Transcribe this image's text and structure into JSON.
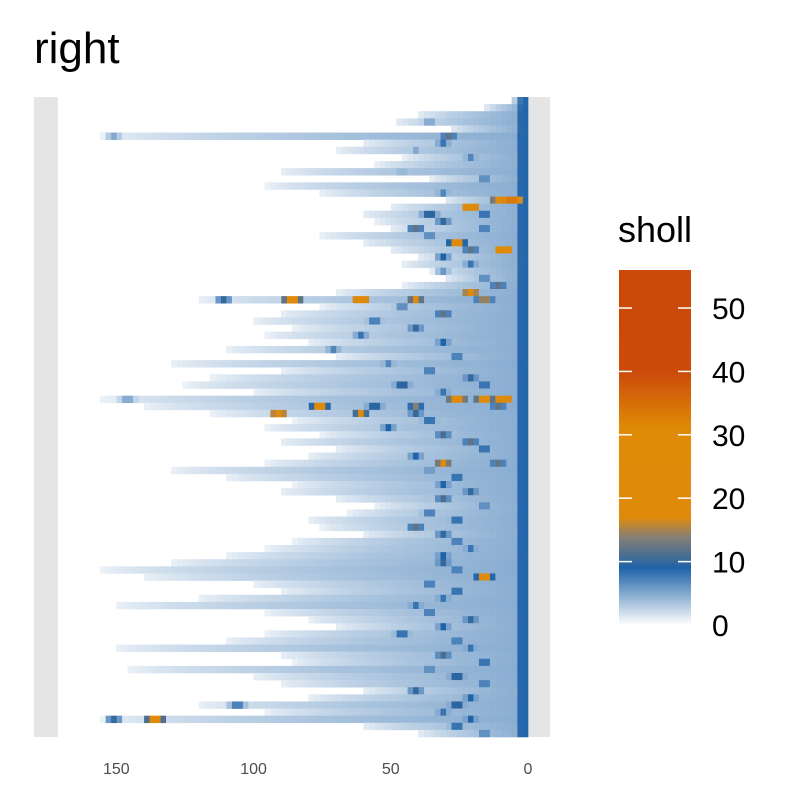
{
  "chart_data": {
    "type": "heatmap",
    "title": "right",
    "xlabel": "",
    "ylabel": "",
    "x_reversed": true,
    "xlim": [
      180,
      -8
    ],
    "x_ticks": [
      150,
      100,
      50,
      0
    ],
    "x_tick_labels": [
      "150",
      "100",
      "50",
      "0"
    ],
    "panel_background": "#e5e5e5",
    "legend": {
      "title": "sholl",
      "ticks": [
        0,
        10,
        20,
        30,
        40,
        50
      ],
      "tick_labels": [
        "0",
        "10",
        "20",
        "30",
        "40",
        "50"
      ],
      "range": [
        0,
        56
      ],
      "position": "right"
    },
    "color_stops": [
      {
        "value": 0,
        "color": "#ffffff"
      },
      {
        "value": 9,
        "color": "#1f63a8"
      },
      {
        "value": 14,
        "color": "#8a8071"
      },
      {
        "value": 17,
        "color": "#e08a0b"
      },
      {
        "value": 31,
        "color": "#df8b07"
      },
      {
        "value": 40,
        "color": "#cc4a0a"
      },
      {
        "value": 56,
        "color": "#cb4a08"
      }
    ],
    "rows_top_to_bottom": [
      {
        "max_radius": 6,
        "peaks": []
      },
      {
        "max_radius": 15,
        "peaks": []
      },
      {
        "max_radius": 40,
        "peaks": []
      },
      {
        "max_radius": 48,
        "peaks": [
          [
            35,
            6
          ]
        ]
      },
      {
        "max_radius": 28,
        "peaks": []
      },
      {
        "max_radius": 155,
        "peaks": [
          [
            150,
            5
          ],
          [
            28,
            12
          ]
        ]
      },
      {
        "max_radius": 60,
        "peaks": [
          [
            30,
            8
          ]
        ]
      },
      {
        "max_radius": 70,
        "peaks": [
          [
            40,
            5
          ]
        ]
      },
      {
        "max_radius": 45,
        "peaks": [
          [
            20,
            7
          ]
        ]
      },
      {
        "max_radius": 55,
        "peaks": []
      },
      {
        "max_radius": 90,
        "peaks": [
          [
            45,
            5
          ]
        ]
      },
      {
        "max_radius": 35,
        "peaks": [
          [
            15,
            8
          ]
        ]
      },
      {
        "max_radius": 95,
        "peaks": []
      },
      {
        "max_radius": 75,
        "peaks": [
          [
            30,
            7
          ]
        ]
      },
      {
        "max_radius": 30,
        "peaks": [
          [
            5,
            42
          ],
          [
            10,
            22
          ]
        ]
      },
      {
        "max_radius": 50,
        "peaks": [
          [
            20,
            28
          ]
        ]
      },
      {
        "max_radius": 60,
        "peaks": [
          [
            35,
            12
          ],
          [
            15,
            10
          ]
        ]
      },
      {
        "max_radius": 55,
        "peaks": [
          [
            30,
            10
          ]
        ]
      },
      {
        "max_radius": 50,
        "peaks": [
          [
            40,
            12
          ],
          [
            15,
            9
          ]
        ]
      },
      {
        "max_radius": 75,
        "peaks": [
          [
            35,
            8
          ]
        ]
      },
      {
        "max_radius": 60,
        "peaks": [
          [
            25,
            22
          ]
        ]
      },
      {
        "max_radius": 50,
        "peaks": [
          [
            20,
            12
          ],
          [
            8,
            30
          ]
        ]
      },
      {
        "max_radius": 40,
        "peaks": [
          [
            30,
            9
          ]
        ]
      },
      {
        "max_radius": 45,
        "peaks": [
          [
            20,
            8
          ]
        ]
      },
      {
        "max_radius": 35,
        "peaks": [
          [
            30,
            6
          ]
        ]
      },
      {
        "max_radius": 30,
        "peaks": [
          [
            15,
            8
          ]
        ]
      },
      {
        "max_radius": 45,
        "peaks": [
          [
            10,
            12
          ]
        ]
      },
      {
        "max_radius": 70,
        "peaks": [
          [
            20,
            25
          ]
        ]
      },
      {
        "max_radius": 120,
        "peaks": [
          [
            110,
            10
          ],
          [
            85,
            30
          ],
          [
            60,
            28
          ],
          [
            40,
            20
          ],
          [
            15,
            18
          ]
        ]
      },
      {
        "max_radius": 75,
        "peaks": [
          [
            45,
            8
          ]
        ]
      },
      {
        "max_radius": 90,
        "peaks": [
          [
            30,
            12
          ]
        ]
      },
      {
        "max_radius": 100,
        "peaks": [
          [
            55,
            9
          ]
        ]
      },
      {
        "max_radius": 85,
        "peaks": [
          [
            40,
            10
          ]
        ]
      },
      {
        "max_radius": 95,
        "peaks": [
          [
            60,
            8
          ]
        ]
      },
      {
        "max_radius": 80,
        "peaks": [
          [
            30,
            9
          ]
        ]
      },
      {
        "max_radius": 110,
        "peaks": [
          [
            70,
            7
          ]
        ]
      },
      {
        "max_radius": 70,
        "peaks": [
          [
            25,
            9
          ]
        ]
      },
      {
        "max_radius": 130,
        "peaks": [
          [
            50,
            7
          ]
        ]
      },
      {
        "max_radius": 90,
        "peaks": [
          [
            35,
            9
          ]
        ]
      },
      {
        "max_radius": 115,
        "peaks": [
          [
            20,
            10
          ]
        ]
      },
      {
        "max_radius": 125,
        "peaks": [
          [
            45,
            12
          ],
          [
            15,
            10
          ]
        ]
      },
      {
        "max_radius": 100,
        "peaks": [
          [
            30,
            8
          ]
        ]
      },
      {
        "max_radius": 155,
        "peaks": [
          [
            145,
            6
          ],
          [
            25,
            32
          ],
          [
            15,
            30
          ],
          [
            8,
            28
          ]
        ]
      },
      {
        "max_radius": 140,
        "peaks": [
          [
            75,
            24
          ],
          [
            55,
            12
          ],
          [
            40,
            14
          ],
          [
            10,
            12
          ]
        ]
      },
      {
        "max_radius": 115,
        "peaks": [
          [
            90,
            26
          ],
          [
            60,
            18
          ],
          [
            40,
            10
          ]
        ]
      },
      {
        "max_radius": 85,
        "peaks": [
          [
            35,
            10
          ]
        ]
      },
      {
        "max_radius": 95,
        "peaks": [
          [
            50,
            9
          ]
        ]
      },
      {
        "max_radius": 75,
        "peaks": [
          [
            30,
            11
          ]
        ]
      },
      {
        "max_radius": 90,
        "peaks": [
          [
            20,
            12
          ]
        ]
      },
      {
        "max_radius": 70,
        "peaks": [
          [
            15,
            10
          ]
        ]
      },
      {
        "max_radius": 80,
        "peaks": [
          [
            40,
            9
          ]
        ]
      },
      {
        "max_radius": 95,
        "peaks": [
          [
            30,
            22
          ],
          [
            10,
            12
          ]
        ]
      },
      {
        "max_radius": 130,
        "peaks": [
          [
            35,
            7
          ]
        ]
      },
      {
        "max_radius": 110,
        "peaks": [
          [
            25,
            10
          ]
        ]
      },
      {
        "max_radius": 85,
        "peaks": [
          [
            30,
            9
          ]
        ]
      },
      {
        "max_radius": 90,
        "peaks": [
          [
            20,
            10
          ]
        ]
      },
      {
        "max_radius": 70,
        "peaks": [
          [
            30,
            11
          ]
        ]
      },
      {
        "max_radius": 55,
        "peaks": [
          [
            15,
            8
          ]
        ]
      },
      {
        "max_radius": 65,
        "peaks": [
          [
            35,
            9
          ]
        ]
      },
      {
        "max_radius": 80,
        "peaks": [
          [
            25,
            10
          ]
        ]
      },
      {
        "max_radius": 75,
        "peaks": [
          [
            40,
            12
          ]
        ]
      },
      {
        "max_radius": 60,
        "peaks": [
          [
            30,
            10
          ]
        ]
      },
      {
        "max_radius": 85,
        "peaks": [
          [
            25,
            9
          ]
        ]
      },
      {
        "max_radius": 95,
        "peaks": [
          [
            20,
            8
          ]
        ]
      },
      {
        "max_radius": 110,
        "peaks": [
          [
            30,
            9
          ]
        ]
      },
      {
        "max_radius": 130,
        "peaks": [
          [
            30,
            10
          ]
        ]
      },
      {
        "max_radius": 155,
        "peaks": [
          [
            25,
            9
          ]
        ]
      },
      {
        "max_radius": 140,
        "peaks": [
          [
            15,
            22
          ]
        ]
      },
      {
        "max_radius": 100,
        "peaks": [
          [
            35,
            9
          ]
        ]
      },
      {
        "max_radius": 90,
        "peaks": [
          [
            25,
            10
          ]
        ]
      },
      {
        "max_radius": 120,
        "peaks": [
          [
            30,
            8
          ]
        ]
      },
      {
        "max_radius": 150,
        "peaks": [
          [
            40,
            8
          ]
        ]
      },
      {
        "max_radius": 95,
        "peaks": [
          [
            35,
            9
          ]
        ]
      },
      {
        "max_radius": 80,
        "peaks": [
          [
            20,
            10
          ]
        ]
      },
      {
        "max_radius": 70,
        "peaks": [
          [
            30,
            9
          ]
        ]
      },
      {
        "max_radius": 95,
        "peaks": [
          [
            45,
            10
          ]
        ]
      },
      {
        "max_radius": 110,
        "peaks": [
          [
            25,
            9
          ]
        ]
      },
      {
        "max_radius": 150,
        "peaks": [
          [
            20,
            8
          ]
        ]
      },
      {
        "max_radius": 90,
        "peaks": [
          [
            30,
            11
          ]
        ]
      },
      {
        "max_radius": 85,
        "peaks": [
          [
            15,
            10
          ]
        ]
      },
      {
        "max_radius": 145,
        "peaks": [
          [
            35,
            8
          ]
        ]
      },
      {
        "max_radius": 100,
        "peaks": [
          [
            25,
            12
          ]
        ]
      },
      {
        "max_radius": 90,
        "peaks": [
          [
            15,
            9
          ]
        ]
      },
      {
        "max_radius": 60,
        "peaks": [
          [
            40,
            10
          ]
        ]
      },
      {
        "max_radius": 80,
        "peaks": [
          [
            20,
            9
          ]
        ]
      },
      {
        "max_radius": 120,
        "peaks": [
          [
            105,
            9
          ],
          [
            25,
            12
          ]
        ]
      },
      {
        "max_radius": 95,
        "peaks": [
          [
            30,
            8
          ]
        ]
      },
      {
        "max_radius": 155,
        "peaks": [
          [
            135,
            28
          ],
          [
            150,
            10
          ],
          [
            20,
            9
          ]
        ]
      },
      {
        "max_radius": 60,
        "peaks": [
          [
            25,
            10
          ]
        ]
      },
      {
        "max_radius": 40,
        "peaks": [
          [
            15,
            8
          ]
        ]
      }
    ]
  }
}
